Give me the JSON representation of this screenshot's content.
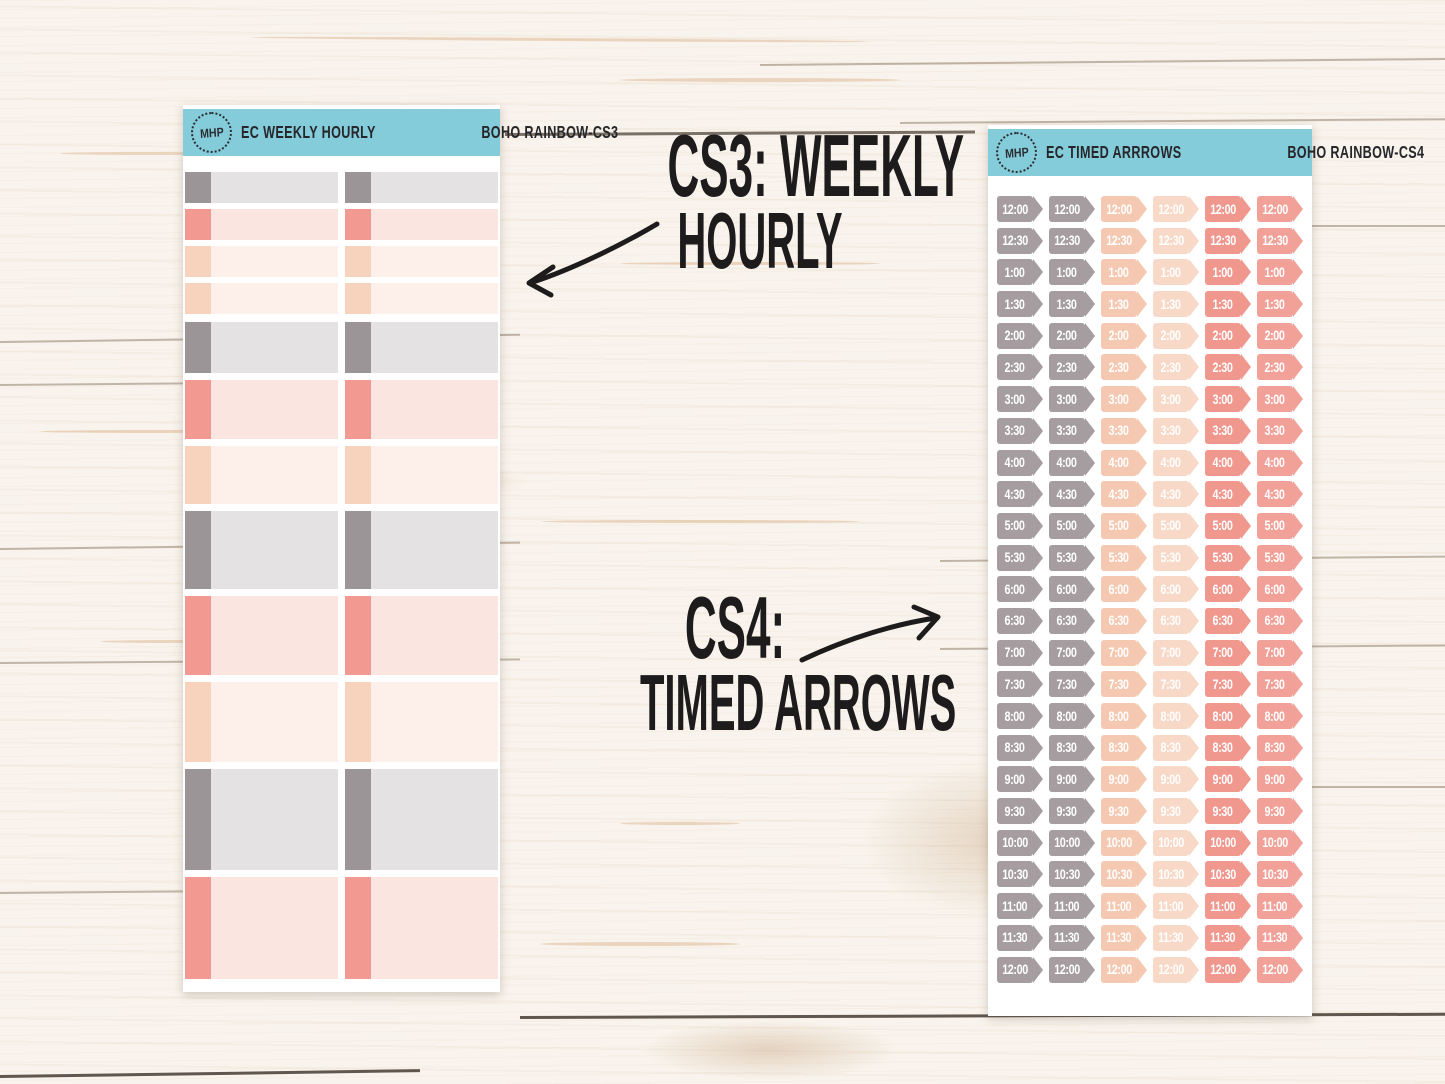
{
  "left_sheet": {
    "brand": "MHP",
    "title": "EC WEEKLY HOURLY",
    "code": "BOHO RAINBOW-CS3",
    "header_color": "#85ccda",
    "palette": {
      "gray": {
        "dark": "#9c9598",
        "light": "#e4e2e3"
      },
      "pink": {
        "dark": "#f29a92",
        "light": "#fbe5e1"
      },
      "peach": {
        "dark": "#f7d3be",
        "light": "#fdf0ea"
      }
    },
    "rows": [
      "gray",
      "pink",
      "peach",
      "peach",
      "gray",
      "pink",
      "peach",
      "gray",
      "pink",
      "peach",
      "gray",
      "pink"
    ]
  },
  "right_sheet": {
    "brand": "MHP",
    "title": "EC TIMED ARRROWS",
    "code": "BOHO RAINBOW-CS4",
    "header_color": "#85ccda",
    "columns": [
      "#a59da0",
      "#a59da0",
      "#f5c9b1",
      "#f8d9c7",
      "#f0978e",
      "#f2a199"
    ],
    "times": [
      "12:00",
      "12:30",
      "1:00",
      "1:30",
      "2:00",
      "2:30",
      "3:00",
      "3:30",
      "4:00",
      "4:30",
      "5:00",
      "5:30",
      "6:00",
      "6:30",
      "7:00",
      "7:30",
      "8:00",
      "8:30",
      "9:00",
      "9:30",
      "10:00",
      "10:30",
      "11:00",
      "11:30",
      "12:00"
    ]
  },
  "annotations": {
    "cs3": {
      "line1": "CS3: WEEKLY",
      "line2": "HOURLY"
    },
    "cs4": {
      "line1": "CS4:",
      "line2": "TIMED ARROWS"
    },
    "ink_color": "#1d1b1c"
  }
}
